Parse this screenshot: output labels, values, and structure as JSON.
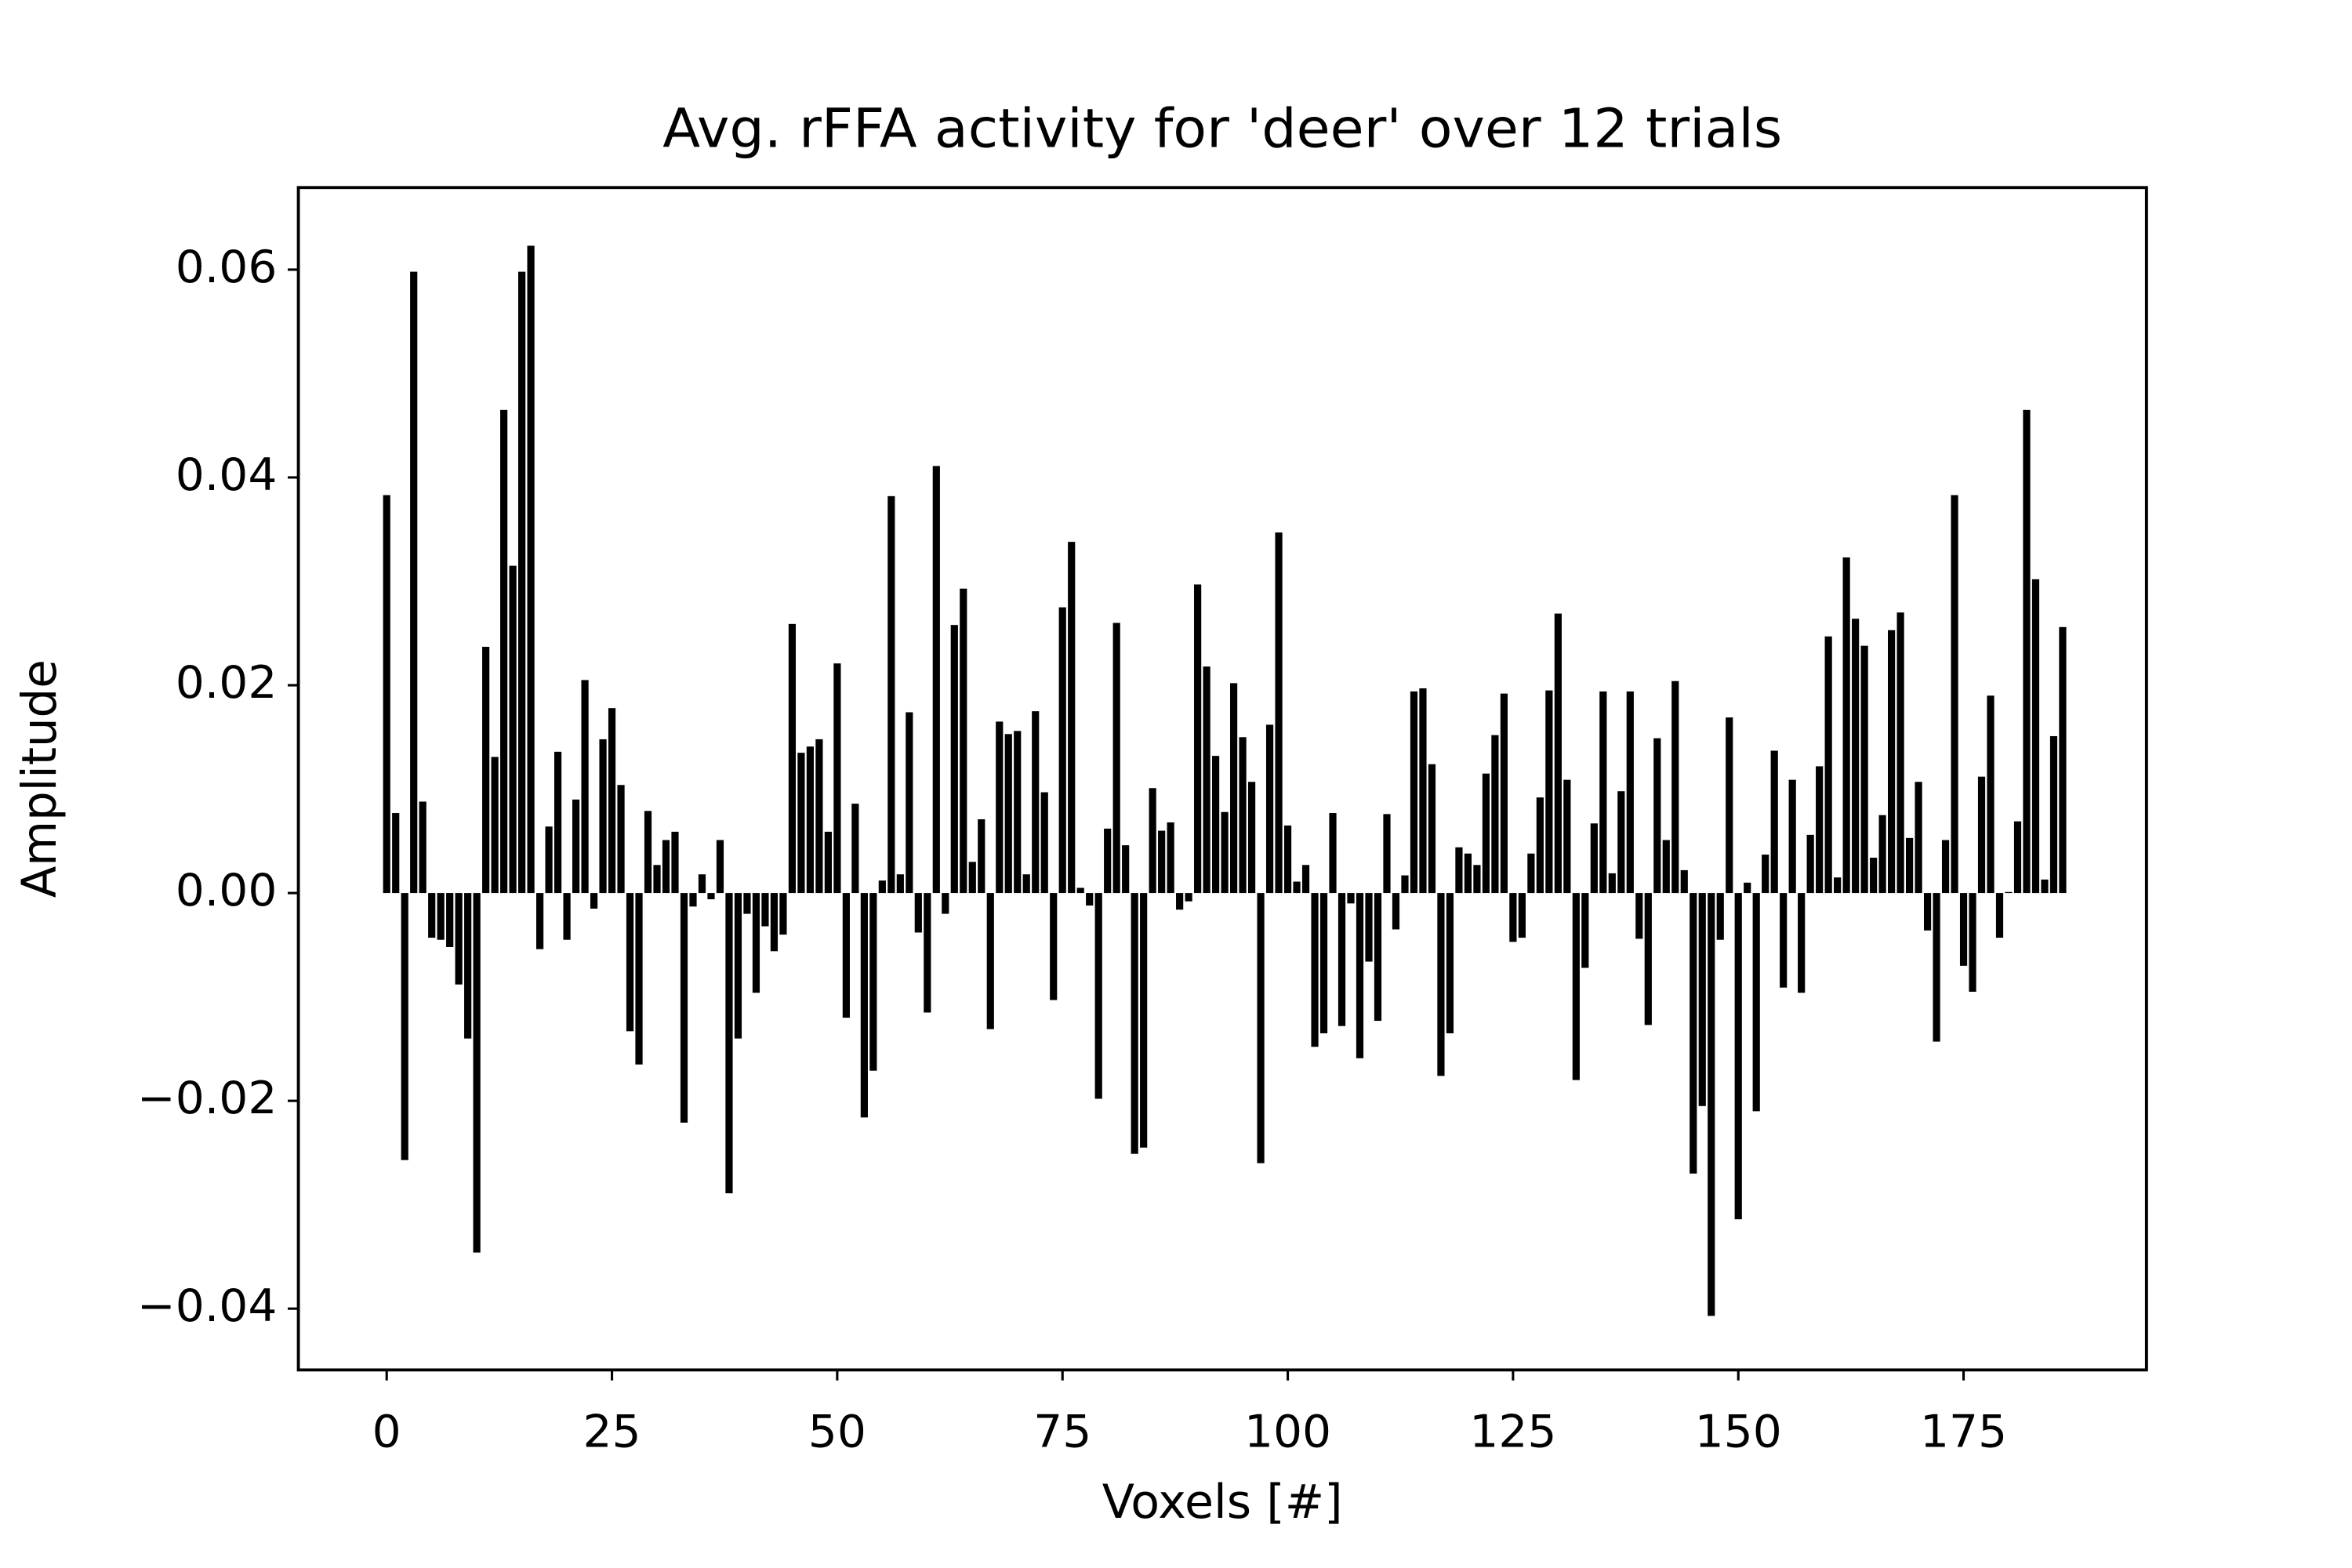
{
  "chart_data": {
    "type": "bar",
    "title": "Avg. rFFA activity for 'deer' over 12 trials",
    "xlabel": "Voxels [#]",
    "ylabel": "Amplitude",
    "color": "#000000",
    "x": [
      0,
      1,
      2,
      3,
      4,
      5,
      6,
      7,
      8,
      9,
      10,
      11,
      12,
      13,
      14,
      15,
      16,
      17,
      18,
      19,
      20,
      21,
      22,
      23,
      24,
      25,
      26,
      27,
      28,
      29,
      30,
      31,
      32,
      33,
      34,
      35,
      36,
      37,
      38,
      39,
      40,
      41,
      42,
      43,
      44,
      45,
      46,
      47,
      48,
      49,
      50,
      51,
      52,
      53,
      54,
      55,
      56,
      57,
      58,
      59,
      60,
      61,
      62,
      63,
      64,
      65,
      66,
      67,
      68,
      69,
      70,
      71,
      72,
      73,
      74,
      75,
      76,
      77,
      78,
      79,
      80,
      81,
      82,
      83,
      84,
      85,
      86,
      87,
      88,
      89,
      90,
      91,
      92,
      93,
      94,
      95,
      96,
      97,
      98,
      99,
      100,
      101,
      102,
      103,
      104,
      105,
      106,
      107,
      108,
      109,
      110,
      111,
      112,
      113,
      114,
      115,
      116,
      117,
      118,
      119,
      120,
      121,
      122,
      123,
      124,
      125,
      126,
      127,
      128,
      129,
      130,
      131,
      132,
      133,
      134,
      135,
      136,
      137,
      138,
      139,
      140,
      141,
      142,
      143,
      144,
      145,
      146,
      147,
      148,
      149,
      150,
      151,
      152,
      153,
      154,
      155,
      156,
      157,
      158,
      159,
      160,
      161,
      162,
      163,
      164,
      165,
      166,
      167,
      168,
      169,
      170,
      171,
      172,
      173,
      174,
      175,
      176,
      177,
      178,
      179,
      180,
      181,
      182,
      183,
      184,
      185,
      186
    ],
    "values": [
      0.0383,
      0.0077,
      -0.0257,
      0.0598,
      0.0088,
      -0.0043,
      -0.0045,
      -0.0052,
      -0.0088,
      -0.014,
      -0.0346,
      0.0237,
      0.0131,
      0.0465,
      0.0315,
      0.0598,
      0.0623,
      -0.0054,
      0.0064,
      0.0136,
      -0.0045,
      0.009,
      0.0205,
      -0.0015,
      0.0148,
      0.0178,
      0.0104,
      -0.0133,
      -0.0165,
      0.0079,
      0.0027,
      0.0051,
      0.0059,
      -0.0221,
      -0.0013,
      0.0018,
      -0.0006,
      0.0051,
      -0.0289,
      -0.014,
      -0.002,
      -0.0096,
      -0.0032,
      -0.0056,
      -0.004,
      0.0259,
      0.0135,
      0.0141,
      0.0148,
      0.0059,
      0.0221,
      -0.012,
      0.0086,
      -0.0216,
      -0.0171,
      0.0012,
      0.0382,
      0.0018,
      0.0174,
      -0.0038,
      -0.0115,
      0.0411,
      -0.002,
      0.0258,
      0.0293,
      0.003,
      0.0071,
      -0.0131,
      0.0165,
      0.0153,
      0.0156,
      0.0018,
      0.0175,
      0.0097,
      -0.0103,
      0.0275,
      0.0338,
      0.0005,
      -0.0012,
      -0.0198,
      0.0062,
      0.026,
      0.0046,
      -0.0251,
      -0.0245,
      0.0101,
      0.006,
      0.0068,
      -0.0016,
      -0.0008,
      0.0297,
      0.0218,
      0.0132,
      0.0078,
      0.0202,
      0.015,
      0.0107,
      -0.026,
      0.0162,
      0.0347,
      0.0065,
      0.0011,
      0.0027,
      -0.0148,
      -0.0135,
      0.0077,
      -0.0128,
      -0.001,
      -0.0159,
      -0.0066,
      -0.0123,
      0.0076,
      -0.0035,
      0.0017,
      0.0194,
      0.0197,
      0.0124,
      -0.0176,
      -0.0135,
      0.0044,
      0.0038,
      0.0027,
      0.0115,
      0.0152,
      0.0192,
      -0.0047,
      -0.0043,
      0.0038,
      0.0092,
      0.0195,
      0.0269,
      0.0109,
      -0.018,
      -0.0072,
      0.0067,
      0.0194,
      0.0019,
      0.0098,
      0.0194,
      -0.0044,
      -0.0127,
      0.0149,
      0.0051,
      0.0204,
      0.0022,
      -0.027,
      -0.0205,
      -0.0407,
      -0.0045,
      0.0169,
      -0.0314,
      0.001,
      -0.021,
      0.0037,
      0.0137,
      -0.0091,
      0.0109,
      -0.0096,
      0.0056,
      0.0122,
      0.0247,
      0.0015,
      0.0323,
      0.0264,
      0.0238,
      0.0034,
      0.0075,
      0.0253,
      0.027,
      0.0053,
      0.0107,
      -0.0036,
      -0.0143,
      0.0051,
      0.0383,
      -0.007,
      -0.0095,
      0.0112,
      0.019,
      -0.0043,
      0.0001,
      0.0069,
      0.0465,
      0.0302,
      0.0013,
      0.0151,
      0.0256
    ],
    "xlim": [
      -9.8,
      195.3
    ],
    "ylim": [
      -0.0459,
      0.0679
    ],
    "xticks": [
      0,
      25,
      50,
      75,
      100,
      125,
      150,
      175
    ],
    "yticks": [
      {
        "value": -0.04,
        "label": "−0.04"
      },
      {
        "value": -0.02,
        "label": "−0.02"
      },
      {
        "value": 0,
        "label": "0.00"
      },
      0.02,
      0.04,
      0.06
    ]
  }
}
